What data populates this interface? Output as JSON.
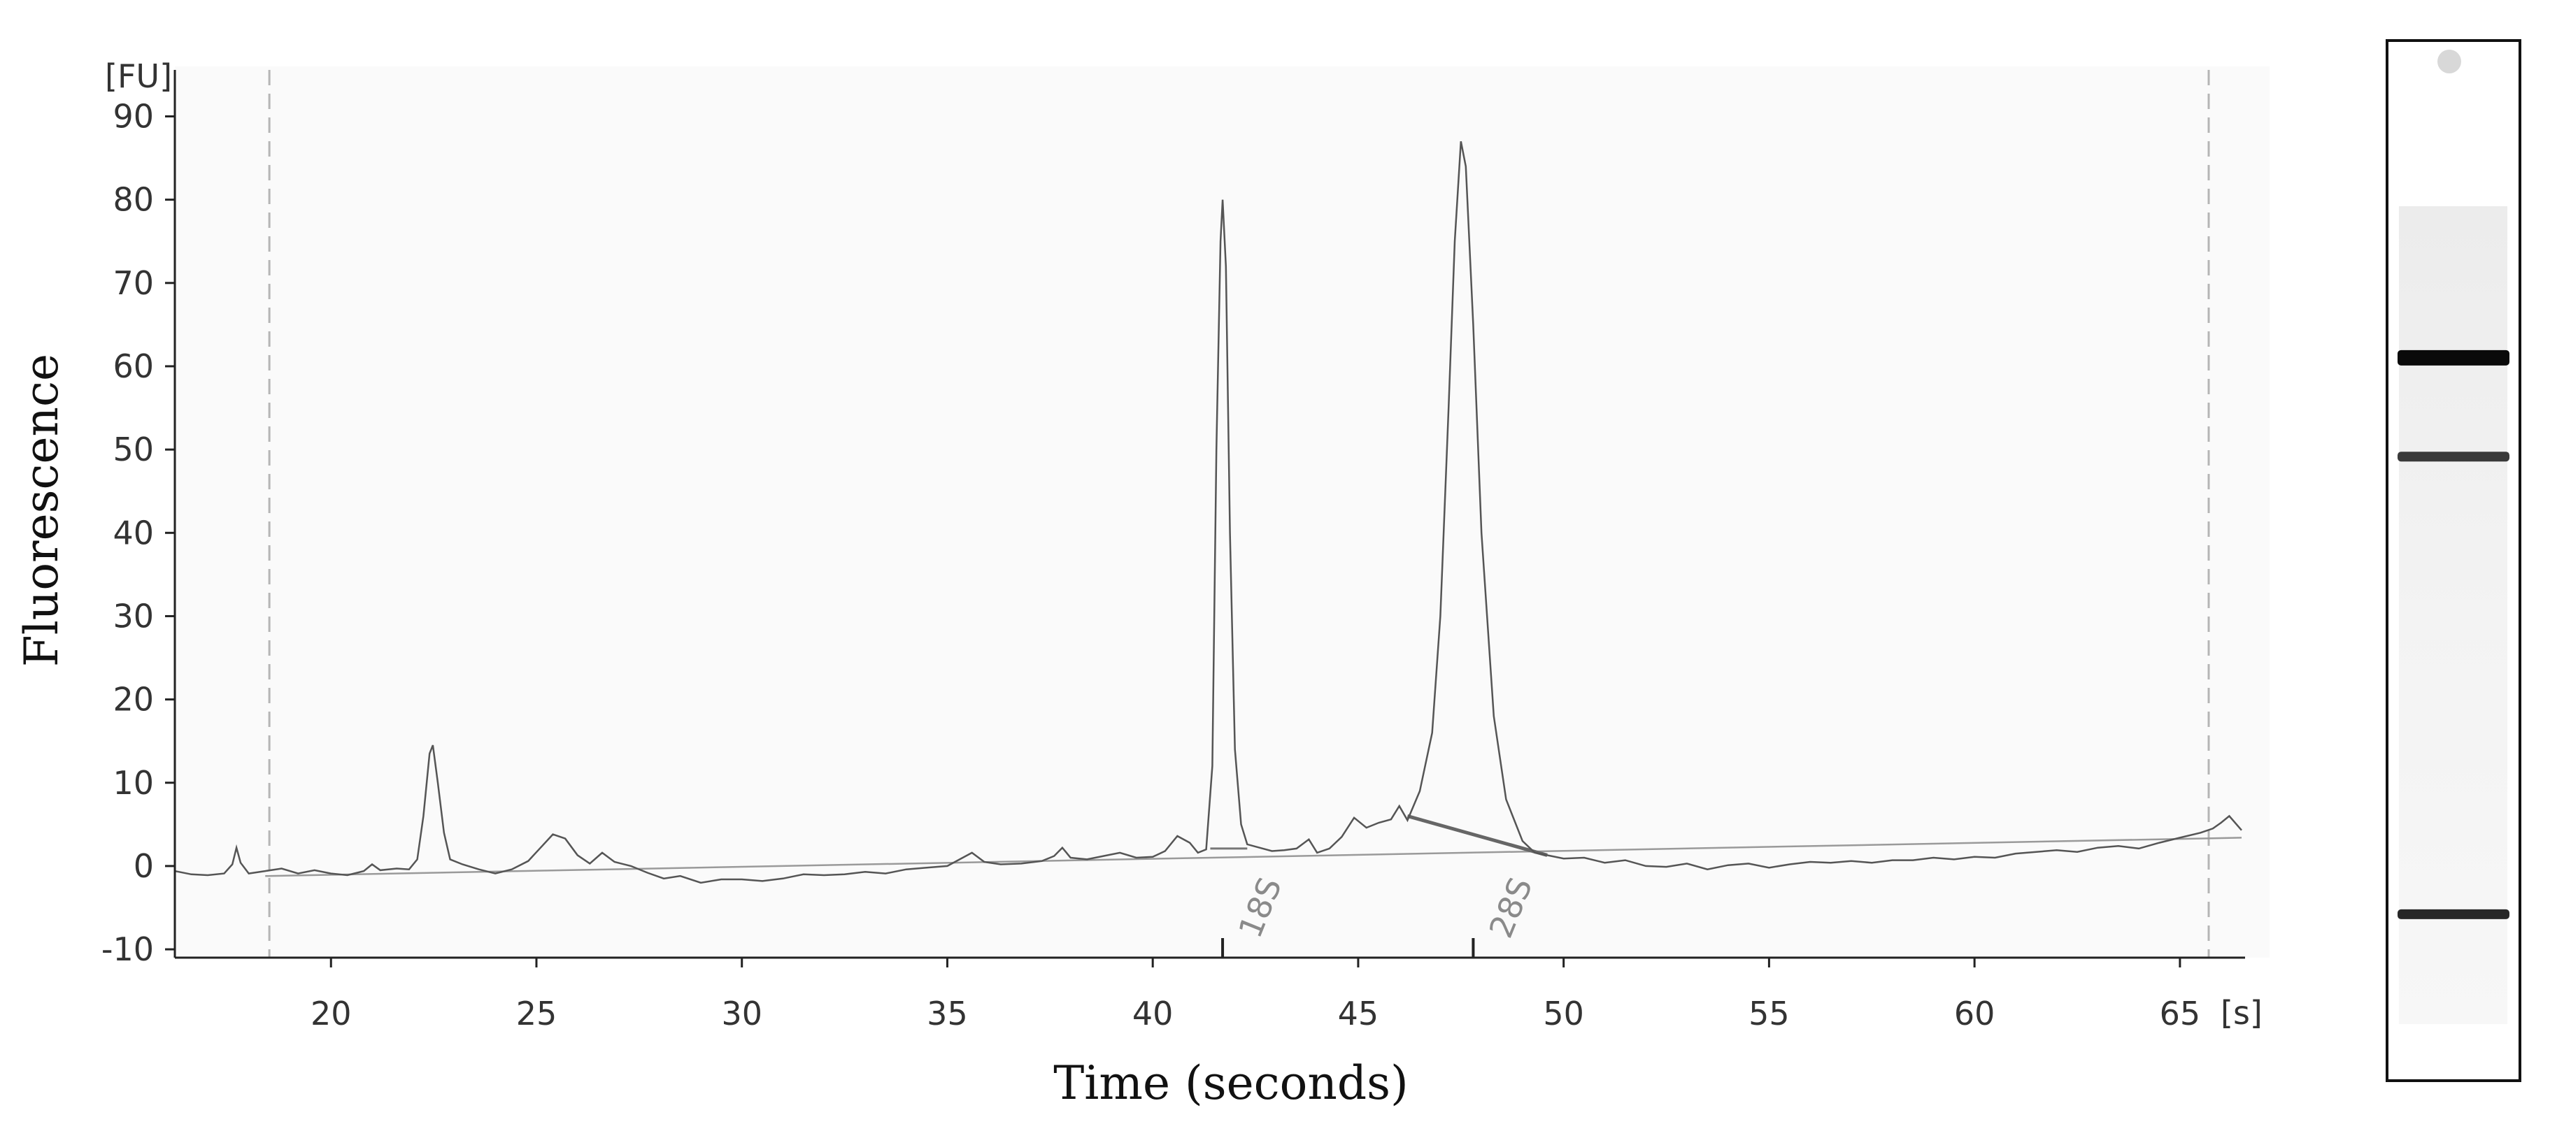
{
  "chart_data": {
    "type": "line",
    "x_unit": "[s]",
    "y_unit": "[FU]",
    "xlabel": "Time (seconds)",
    "ylabel": "Fluorescence",
    "xlim": [
      16.2,
      66.5
    ],
    "ylim": [
      -11,
      96
    ],
    "x_ticks": [
      20,
      25,
      30,
      35,
      40,
      45,
      50,
      55,
      60,
      65
    ],
    "y_ticks": [
      -10,
      0,
      10,
      20,
      30,
      40,
      50,
      60,
      70,
      80,
      90
    ],
    "grid": false,
    "series": [
      {
        "points": [
          [
            16.2,
            -0.6
          ],
          [
            16.6,
            -1.0
          ],
          [
            17.0,
            -1.1
          ],
          [
            17.4,
            -0.9
          ],
          [
            17.6,
            0.2
          ],
          [
            17.7,
            2.2
          ],
          [
            17.8,
            0.4
          ],
          [
            18.0,
            -0.9
          ],
          [
            18.4,
            -0.6
          ],
          [
            18.8,
            -0.3
          ],
          [
            19.2,
            -0.9
          ],
          [
            19.6,
            -0.5
          ],
          [
            20.0,
            -0.9
          ],
          [
            20.4,
            -1.1
          ],
          [
            20.8,
            -0.6
          ],
          [
            21.0,
            0.2
          ],
          [
            21.2,
            -0.5
          ],
          [
            21.6,
            -0.3
          ],
          [
            21.9,
            -0.4
          ],
          [
            22.1,
            0.8
          ],
          [
            22.25,
            6.0
          ],
          [
            22.4,
            13.5
          ],
          [
            22.48,
            14.5
          ],
          [
            22.6,
            10.0
          ],
          [
            22.75,
            4.0
          ],
          [
            22.9,
            0.8
          ],
          [
            23.2,
            0.2
          ],
          [
            23.6,
            -0.4
          ],
          [
            24.0,
            -0.9
          ],
          [
            24.4,
            -0.4
          ],
          [
            24.8,
            0.6
          ],
          [
            25.1,
            2.2
          ],
          [
            25.4,
            3.8
          ],
          [
            25.7,
            3.3
          ],
          [
            26.0,
            1.3
          ],
          [
            26.3,
            0.3
          ],
          [
            26.6,
            1.6
          ],
          [
            26.9,
            0.5
          ],
          [
            27.3,
            0.0
          ],
          [
            27.7,
            -0.8
          ],
          [
            28.1,
            -1.5
          ],
          [
            28.5,
            -1.2
          ],
          [
            29.0,
            -2.0
          ],
          [
            29.5,
            -1.6
          ],
          [
            30.0,
            -1.6
          ],
          [
            30.5,
            -1.8
          ],
          [
            31.0,
            -1.5
          ],
          [
            31.5,
            -1.0
          ],
          [
            32.0,
            -1.1
          ],
          [
            32.5,
            -1.0
          ],
          [
            33.0,
            -0.7
          ],
          [
            33.5,
            -0.9
          ],
          [
            34.0,
            -0.4
          ],
          [
            34.5,
            -0.2
          ],
          [
            35.0,
            0.0
          ],
          [
            35.3,
            0.8
          ],
          [
            35.6,
            1.6
          ],
          [
            35.9,
            0.5
          ],
          [
            36.3,
            0.2
          ],
          [
            36.8,
            0.3
          ],
          [
            37.3,
            0.6
          ],
          [
            37.6,
            1.2
          ],
          [
            37.8,
            2.2
          ],
          [
            38.0,
            1.0
          ],
          [
            38.4,
            0.8
          ],
          [
            38.8,
            1.2
          ],
          [
            39.2,
            1.6
          ],
          [
            39.6,
            1.0
          ],
          [
            40.0,
            1.1
          ],
          [
            40.3,
            1.8
          ],
          [
            40.6,
            3.6
          ],
          [
            40.9,
            2.8
          ],
          [
            41.1,
            1.6
          ],
          [
            41.3,
            2.0
          ],
          [
            41.45,
            12.0
          ],
          [
            41.55,
            50.0
          ],
          [
            41.65,
            75.0
          ],
          [
            41.7,
            80.0
          ],
          [
            41.78,
            72.0
          ],
          [
            41.88,
            40.0
          ],
          [
            42.0,
            14.0
          ],
          [
            42.15,
            5.0
          ],
          [
            42.3,
            2.6
          ],
          [
            42.6,
            2.2
          ],
          [
            42.9,
            1.8
          ],
          [
            43.2,
            1.9
          ],
          [
            43.5,
            2.1
          ],
          [
            43.8,
            3.2
          ],
          [
            44.0,
            1.6
          ],
          [
            44.3,
            2.1
          ],
          [
            44.6,
            3.5
          ],
          [
            44.9,
            5.8
          ],
          [
            45.2,
            4.6
          ],
          [
            45.5,
            5.2
          ],
          [
            45.8,
            5.6
          ],
          [
            46.0,
            7.2
          ],
          [
            46.2,
            5.5
          ],
          [
            46.5,
            9.0
          ],
          [
            46.8,
            16.0
          ],
          [
            47.0,
            30.0
          ],
          [
            47.2,
            55.0
          ],
          [
            47.35,
            75.0
          ],
          [
            47.5,
            87.0
          ],
          [
            47.62,
            84.0
          ],
          [
            47.8,
            65.0
          ],
          [
            48.0,
            40.0
          ],
          [
            48.3,
            18.0
          ],
          [
            48.6,
            8.0
          ],
          [
            49.0,
            3.0
          ],
          [
            49.3,
            1.6
          ],
          [
            49.7,
            1.2
          ],
          [
            50.0,
            0.9
          ],
          [
            50.5,
            1.0
          ],
          [
            51.0,
            0.4
          ],
          [
            51.5,
            0.7
          ],
          [
            52.0,
            0.0
          ],
          [
            52.5,
            -0.1
          ],
          [
            53.0,
            0.3
          ],
          [
            53.5,
            -0.4
          ],
          [
            54.0,
            0.1
          ],
          [
            54.5,
            0.3
          ],
          [
            55.0,
            -0.2
          ],
          [
            55.5,
            0.2
          ],
          [
            56.0,
            0.5
          ],
          [
            56.5,
            0.4
          ],
          [
            57.0,
            0.6
          ],
          [
            57.5,
            0.4
          ],
          [
            58.0,
            0.7
          ],
          [
            58.5,
            0.7
          ],
          [
            59.0,
            1.0
          ],
          [
            59.5,
            0.8
          ],
          [
            60.0,
            1.1
          ],
          [
            60.5,
            1.0
          ],
          [
            61.0,
            1.5
          ],
          [
            61.5,
            1.7
          ],
          [
            62.0,
            1.9
          ],
          [
            62.5,
            1.7
          ],
          [
            63.0,
            2.2
          ],
          [
            63.5,
            2.4
          ],
          [
            64.0,
            2.1
          ],
          [
            64.5,
            2.8
          ],
          [
            65.0,
            3.4
          ],
          [
            65.5,
            4.0
          ],
          [
            65.8,
            4.5
          ],
          [
            66.0,
            5.2
          ],
          [
            66.2,
            6.0
          ],
          [
            66.5,
            4.3
          ]
        ]
      }
    ],
    "baseline": {
      "from": [
        18.4,
        -1.2
      ],
      "to": [
        66.5,
        3.4
      ]
    },
    "peak_segments": [
      {
        "from": [
          41.4,
          2.1
        ],
        "to": [
          42.3,
          2.1
        ]
      },
      {
        "from": [
          46.2,
          6.0
        ],
        "to": [
          49.6,
          1.3
        ]
      }
    ],
    "boundary_markers_x": [
      18.5,
      65.7
    ],
    "peak_labels": [
      {
        "text": "18S",
        "x": 41.7
      },
      {
        "text": "28S",
        "x": 47.8
      }
    ]
  },
  "gel_lane": {
    "bands": [
      {
        "position": 0.305,
        "darkness": 1.0
      },
      {
        "position": 0.4,
        "darkness": 0.75
      },
      {
        "position": 0.84,
        "darkness": 0.85
      }
    ]
  }
}
